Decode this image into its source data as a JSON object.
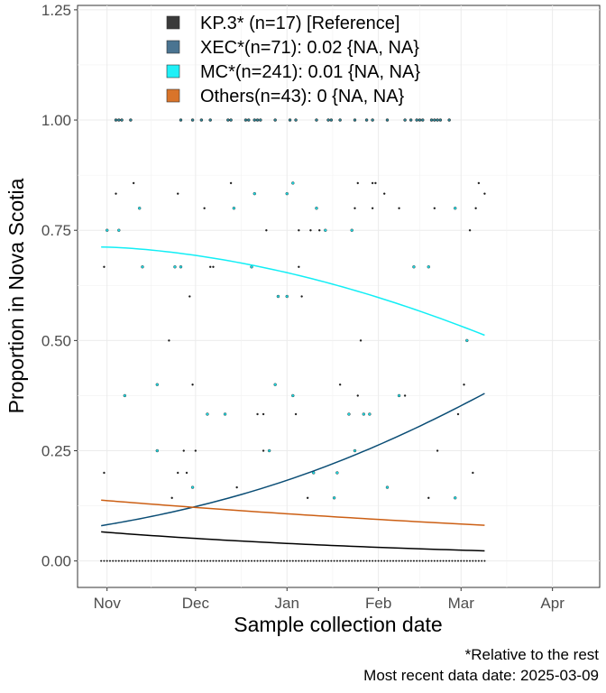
{
  "chart_data": {
    "type": "scatter",
    "title": "",
    "xlabel": "Sample collection date",
    "ylabel": "Proportion in Nova Scotia",
    "x_ticks": [
      "Nov",
      "Dec",
      "Jan",
      "Feb",
      "Mar",
      "Apr"
    ],
    "y_ticks": [
      "0.00",
      "0.25",
      "0.50",
      "0.75",
      "1.00",
      "1.25"
    ],
    "xlim": [
      "2024-10-22",
      "2025-04-17"
    ],
    "ylim": [
      -0.06,
      1.26
    ],
    "grid": true,
    "legend_position": "top",
    "legend": [
      {
        "label": "KP.3* (n=17)  [Reference]",
        "color": "#3a3a3a"
      },
      {
        "label": "XEC*(n=71): 0.02 {NA, NA}",
        "color": "#4a7491"
      },
      {
        "label": "MC*(n=241): 0.01 {NA, NA}",
        "color": "#1ff0f7"
      },
      {
        "label": "Others(n=43): 0 {NA, NA}",
        "color": "#d9742a"
      }
    ],
    "series": [
      {
        "line_color": "#000000",
        "x": [
          "2024-10-30",
          "2025-03-09"
        ],
        "fit": [
          0.066,
          0.023
        ]
      },
      {
        "line_color": "#0a4d75",
        "x": [
          "2024-10-30",
          "2025-03-09"
        ],
        "fit": [
          0.08,
          0.38
        ]
      },
      {
        "line_color": "#12eef5",
        "x": [
          "2024-10-30",
          "2025-03-09"
        ],
        "fit": [
          0.712,
          0.512
        ]
      },
      {
        "line_color": "#cc5f14",
        "x": [
          "2024-10-30",
          "2025-03-09"
        ],
        "fit": [
          0.138,
          0.081
        ]
      }
    ],
    "point_levels": [
      0,
      0.143,
      0.167,
      0.2,
      0.25,
      0.333,
      0.375,
      0.4,
      0.5,
      0.6,
      0.667,
      0.75,
      0.8,
      0.833,
      0.857,
      1.0
    ]
  },
  "caption": {
    "line1": "*Relative to the rest",
    "line2": "Most recent data date: 2025-03-09"
  }
}
